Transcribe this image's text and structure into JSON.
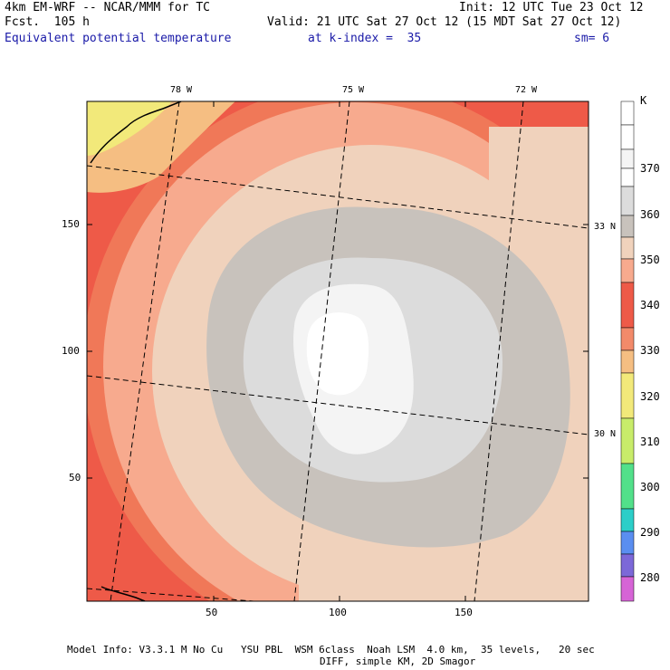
{
  "header": {
    "model": "4km EM-WRF -- NCAR/MMM for TC",
    "forecast": "Fcst.  105 h",
    "init": "Init: 12 UTC Tue 23 Oct 12",
    "valid": "Valid: 21 UTC Sat 27 Oct 12 (15 MDT Sat 27 Oct 12)",
    "field": "Equivalent potential temperature",
    "level": "at k-index =  35",
    "smooth": "sm= 6"
  },
  "axes": {
    "x_ticks": [
      "50",
      "100",
      "150"
    ],
    "y_ticks": [
      "150",
      "100",
      "50"
    ],
    "lon_labels": [
      "78 W",
      "75 W",
      "72 W"
    ],
    "lat_labels": [
      "33 N",
      "30 N"
    ]
  },
  "colorbar": {
    "unit": "K",
    "labels": [
      "370",
      "360",
      "350",
      "340",
      "330",
      "320",
      "310",
      "300",
      "290",
      "280"
    ],
    "colors": [
      "#ffffff",
      "#f4f4f4",
      "#dcdcdc",
      "#c8c2bc",
      "#f0d2bc",
      "#f7aa8e",
      "#ee5a48",
      "#f28a6a",
      "#f5be82",
      "#f2e97a",
      "#c8ec6a",
      "#52e08a",
      "#2ccec8",
      "#5a8ef0",
      "#7c68d8",
      "#b070d0",
      "#d664d6"
    ]
  },
  "footer": {
    "line1": "Model Info: V3.3.1 M No Cu   YSU PBL  WSM 6class  Noah LSM  4.0 km,  35 levels,   20 sec",
    "line2": "DIFF, simple KM, 2D Smagor"
  }
}
